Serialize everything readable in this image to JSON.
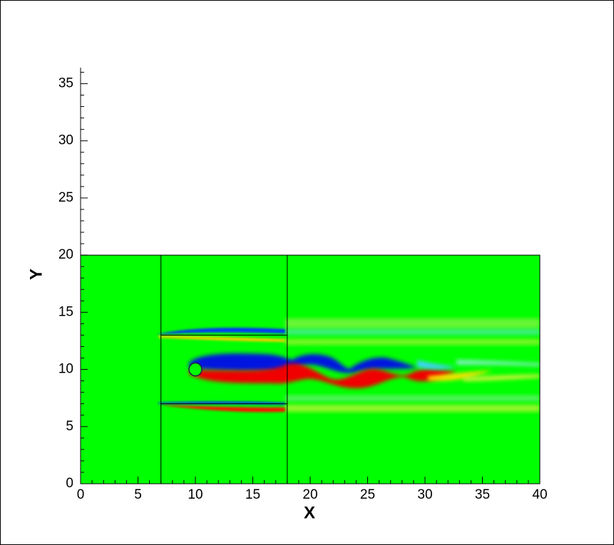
{
  "chart_data": {
    "type": "contour",
    "x_label": "X",
    "y_label": "Y",
    "xlim": [
      0,
      40
    ],
    "ylim": [
      0,
      36.4
    ],
    "xticks": [
      0,
      5,
      10,
      15,
      20,
      25,
      30,
      35,
      40
    ],
    "yticks": [
      0,
      5,
      10,
      15,
      20,
      25,
      30,
      35
    ],
    "field_color": "#00ff00",
    "domain": {
      "x": [
        0,
        40
      ],
      "y": [
        0,
        20
      ]
    },
    "zone_lines": {
      "x": [
        7,
        18
      ],
      "y": [
        7,
        13
      ]
    },
    "cylinder": {
      "x": 10,
      "y": 10,
      "r": 0.5
    }
  }
}
